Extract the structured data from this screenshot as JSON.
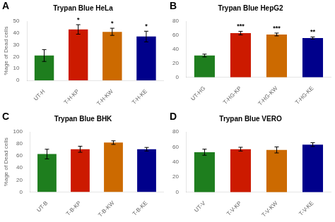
{
  "chart_data": [
    {
      "type": "bar",
      "panel_label": "A",
      "title": "Trypan Blue HeLa",
      "ylabel": "%age of Dead cells",
      "categories": [
        "UT-H",
        "T-H-KP",
        "T-H-KW",
        "T-H-KE"
      ],
      "values": [
        21,
        43,
        41,
        37
      ],
      "errors": [
        5,
        4,
        3,
        4.5
      ],
      "colors": [
        "#1e7e1e",
        "#cc1a00",
        "#cc6a00",
        "#00008b"
      ],
      "ylim": [
        0,
        50
      ],
      "yticks": [
        0,
        10,
        20,
        30,
        40,
        50
      ],
      "grid": false,
      "annotations": [
        {
          "x": "T-H-KP",
          "text": "*"
        },
        {
          "x": "T-H-KW",
          "text": "*"
        },
        {
          "x": "T-H-KE",
          "text": "*"
        }
      ]
    },
    {
      "type": "bar",
      "panel_label": "B",
      "title": "Trypan Blue HepG2",
      "categories": [
        "UT-HG",
        "T-HG-KP",
        "T-HG-KW",
        "T-HG-KE"
      ],
      "values": [
        31,
        63,
        61,
        56
      ],
      "errors": [
        2,
        2.5,
        2,
        1.5
      ],
      "colors": [
        "#1e7e1e",
        "#cc1a00",
        "#cc6a00",
        "#00008b"
      ],
      "ylim": [
        0,
        80
      ],
      "yticks": [
        0,
        20,
        40,
        60,
        80
      ],
      "grid": false,
      "annotations": [
        {
          "x": "T-HG-KP",
          "text": "***"
        },
        {
          "x": "T-HG-KW",
          "text": "***"
        },
        {
          "x": "T-HG-KE",
          "text": "**"
        }
      ]
    },
    {
      "type": "bar",
      "panel_label": "C",
      "title": "Trypan Blue BHK",
      "ylabel": "%age of Dead cells",
      "categories": [
        "UT-B",
        "T-B-KP",
        "T-B-KW",
        "T-B-KE"
      ],
      "values": [
        63,
        71,
        82,
        71
      ],
      "errors": [
        8,
        5,
        3,
        3
      ],
      "colors": [
        "#1e7e1e",
        "#cc1a00",
        "#cc6a00",
        "#00008b"
      ],
      "ylim": [
        0,
        100
      ],
      "yticks": [
        0,
        20,
        40,
        60,
        80,
        100
      ],
      "grid": false
    },
    {
      "type": "bar",
      "panel_label": "D",
      "title": "Trypan Blue VERO",
      "categories": [
        "UT-V",
        "T-V-KP",
        "T-V-KW",
        "T-V-KE"
      ],
      "values": [
        53,
        57,
        56,
        63
      ],
      "errors": [
        4,
        2.5,
        4,
        2.5
      ],
      "colors": [
        "#1e7e1e",
        "#cc1a00",
        "#cc6a00",
        "#00008b"
      ],
      "ylim": [
        0,
        80
      ],
      "yticks": [
        0,
        20,
        40,
        60,
        80
      ],
      "grid": false
    }
  ]
}
